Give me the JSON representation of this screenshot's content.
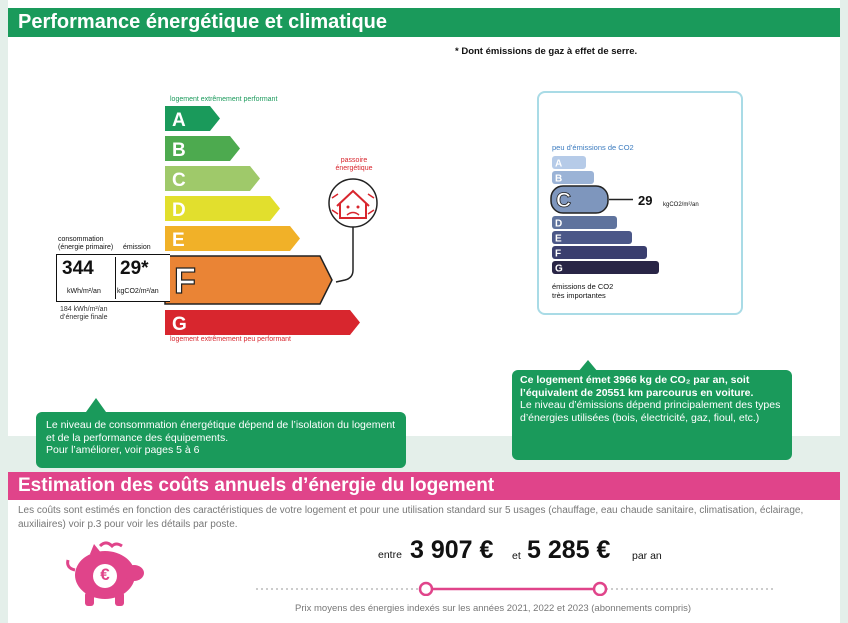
{
  "section1": {
    "title": "Performance énergétique et climatique",
    "ghg_note": "* Dont émissions de gaz à effet de serre.",
    "energy_label": {
      "top_caption": "logement extrêmement performant",
      "bottom_caption": "logement extrêmement peu performant",
      "classes": [
        "A",
        "B",
        "C",
        "D",
        "E",
        "F",
        "G"
      ],
      "class_colors": [
        "#1a9a5b",
        "#4daa4f",
        "#9fc96a",
        "#e2df2d",
        "#f1b128",
        "#ea8435",
        "#d8262e"
      ],
      "current_class": "F",
      "consumption_header": "consommation\n(énergie primaire)",
      "emission_header": "émission",
      "consumption_value": "344",
      "consumption_unit": "kWh/m²/an",
      "emission_value": "29*",
      "emission_unit": "kgCO2/m²/an",
      "final_energy": "184 kWh/m²/an\nd’énergie finale",
      "passoire_label": "passoire\nénergétique"
    },
    "climate_label": {
      "top_caption": "peu d’émissions de CO2",
      "classes": [
        "A",
        "B",
        "C",
        "D",
        "E",
        "F",
        "G"
      ],
      "class_colors": [
        "#b6cbe8",
        "#9bb3d6",
        "#7e96bd",
        "#5f739d",
        "#4b5788",
        "#3a3e6e",
        "#292546"
      ],
      "current_class": "C",
      "value": "29",
      "unit": "kgCO2/m²/an",
      "bottom_caption": "émissions de CO2\ntrès importantes"
    },
    "bubble_left": "Le niveau de consommation énergétique dépend de l’isolation du logement et de la performance des équipements.\nPour l’améliorer, voir pages 5 à 6",
    "bubble_right_bold": "Ce logement émet 3966  kg de CO₂ par an, soit l’équivalent de 20551 km parcourus en voiture.",
    "bubble_right_text": "Le niveau d’émissions dépend principalement des types d’énergies utilisées (bois, électricité, gaz, fioul, etc.)"
  },
  "section2": {
    "title": "Estimation des coûts annuels d’énergie du logement",
    "intro": "Les coûts sont estimés en fonction des caractéristiques de votre logement et pour une utilisation standard sur 5 usages (chauffage, eau chaude sanitaire, climatisation, éclairage, auxiliaires) voir p.3 pour voir les détails par poste.",
    "between_label": "entre",
    "min_cost": "3 907 €",
    "and_label": "et",
    "max_cost": "5 285 €",
    "per_year": "par an",
    "prices_note": "Prix moyens des énergies indexés sur les années 2021, 2022 et 2023  (abonnements compris)",
    "piggy_symbol": "€"
  }
}
